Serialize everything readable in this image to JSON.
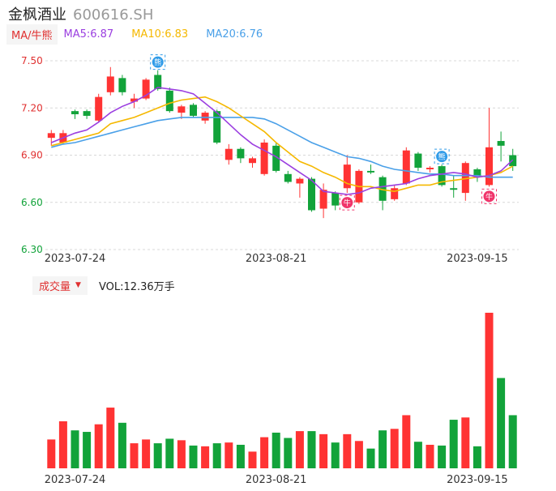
{
  "stock": {
    "name": "金枫酒业",
    "code": "600616.SH"
  },
  "ma_legend": {
    "type_label": "MA/牛熊",
    "items": [
      {
        "label": "MA5:6.87",
        "color": "#9b3fe0"
      },
      {
        "label": "MA10:6.83",
        "color": "#f5b800"
      },
      {
        "label": "MA20:6.76",
        "color": "#4aa0e8"
      }
    ]
  },
  "volume_legend": {
    "type_label": "成交量",
    "vol_label": "VOL:12.36万手"
  },
  "colors": {
    "up": "#ff3333",
    "down": "#12a33a",
    "grid": "#d8d8d8",
    "axis_text": "#333333",
    "price_tick": "#e03030",
    "price_tick_low": "#12a33a"
  },
  "chart_data": {
    "type": "candlestick",
    "price_axis": {
      "ticks": [
        7.5,
        7.2,
        6.9,
        6.6,
        6.3
      ],
      "ylim": [
        6.3,
        7.5
      ],
      "tick_labels": [
        "7.50",
        "7.20",
        "6.90",
        "6.60",
        "6.30"
      ]
    },
    "x_tick_labels": [
      {
        "label": "2023-07-24",
        "index": 2
      },
      {
        "label": "2023-08-21",
        "index": 19
      },
      {
        "label": "2023-09-15",
        "index": 36
      }
    ],
    "candles": [
      {
        "o": 7.01,
        "c": 7.04,
        "h": 7.06,
        "l": 6.96
      },
      {
        "o": 6.98,
        "c": 7.04,
        "h": 7.06,
        "l": 6.97
      },
      {
        "o": 7.18,
        "c": 7.16,
        "h": 7.19,
        "l": 7.13
      },
      {
        "o": 7.18,
        "c": 7.15,
        "h": 7.19,
        "l": 7.13
      },
      {
        "o": 7.12,
        "c": 7.27,
        "h": 7.29,
        "l": 7.11
      },
      {
        "o": 7.3,
        "c": 7.4,
        "h": 7.46,
        "l": 7.28
      },
      {
        "o": 7.39,
        "c": 7.3,
        "h": 7.41,
        "l": 7.28
      },
      {
        "o": 7.24,
        "c": 7.26,
        "h": 7.29,
        "l": 7.2
      },
      {
        "o": 7.26,
        "c": 7.38,
        "h": 7.39,
        "l": 7.25
      },
      {
        "o": 7.41,
        "c": 7.32,
        "h": 7.44,
        "l": 7.31
      },
      {
        "o": 7.31,
        "c": 7.18,
        "h": 7.33,
        "l": 7.17
      },
      {
        "o": 7.17,
        "c": 7.21,
        "h": 7.22,
        "l": 7.13
      },
      {
        "o": 7.22,
        "c": 7.15,
        "h": 7.23,
        "l": 7.14
      },
      {
        "o": 7.12,
        "c": 7.17,
        "h": 7.18,
        "l": 7.1
      },
      {
        "o": 7.18,
        "c": 6.98,
        "h": 7.19,
        "l": 6.97
      },
      {
        "o": 6.87,
        "c": 6.94,
        "h": 6.97,
        "l": 6.84
      },
      {
        "o": 6.94,
        "c": 6.88,
        "h": 6.95,
        "l": 6.85
      },
      {
        "o": 6.85,
        "c": 6.88,
        "h": 6.89,
        "l": 6.82
      },
      {
        "o": 6.78,
        "c": 6.98,
        "h": 7.0,
        "l": 6.77
      },
      {
        "o": 6.96,
        "c": 6.8,
        "h": 6.98,
        "l": 6.79
      },
      {
        "o": 6.78,
        "c": 6.73,
        "h": 6.8,
        "l": 6.72
      },
      {
        "o": 6.72,
        "c": 6.75,
        "h": 6.76,
        "l": 6.63
      },
      {
        "o": 6.75,
        "c": 6.55,
        "h": 6.76,
        "l": 6.54
      },
      {
        "o": 6.56,
        "c": 6.68,
        "h": 6.72,
        "l": 6.5
      },
      {
        "o": 6.66,
        "c": 6.58,
        "h": 6.67,
        "l": 6.55
      },
      {
        "o": 6.69,
        "c": 6.84,
        "h": 6.9,
        "l": 6.66
      },
      {
        "o": 6.6,
        "c": 6.8,
        "h": 6.81,
        "l": 6.59
      },
      {
        "o": 6.8,
        "c": 6.79,
        "h": 6.84,
        "l": 6.78
      },
      {
        "o": 6.76,
        "c": 6.61,
        "h": 6.77,
        "l": 6.55
      },
      {
        "o": 6.62,
        "c": 6.69,
        "h": 6.71,
        "l": 6.61
      },
      {
        "o": 6.72,
        "c": 6.93,
        "h": 6.95,
        "l": 6.71
      },
      {
        "o": 6.91,
        "c": 6.82,
        "h": 6.92,
        "l": 6.8
      },
      {
        "o": 6.81,
        "c": 6.82,
        "h": 6.83,
        "l": 6.79
      },
      {
        "o": 6.83,
        "c": 6.71,
        "h": 6.84,
        "l": 6.7
      },
      {
        "o": 6.69,
        "c": 6.68,
        "h": 6.77,
        "l": 6.63
      },
      {
        "o": 6.66,
        "c": 6.85,
        "h": 6.86,
        "l": 6.61
      },
      {
        "o": 6.81,
        "c": 6.77,
        "h": 6.82,
        "l": 6.73
      },
      {
        "o": 6.71,
        "c": 6.95,
        "h": 7.2,
        "l": 6.7
      },
      {
        "o": 6.99,
        "c": 6.96,
        "h": 7.05,
        "l": 6.86
      },
      {
        "o": 6.9,
        "c": 6.83,
        "h": 6.94,
        "l": 6.8
      }
    ],
    "ma5": [
      6.98,
      7.01,
      7.04,
      7.06,
      7.11,
      7.17,
      7.21,
      7.24,
      7.28,
      7.33,
      7.32,
      7.31,
      7.29,
      7.23,
      7.17,
      7.1,
      7.03,
      6.97,
      6.93,
      6.89,
      6.84,
      6.79,
      6.74,
      6.67,
      6.66,
      6.65,
      6.66,
      6.69,
      6.7,
      6.71,
      6.72,
      6.75,
      6.77,
      6.78,
      6.79,
      6.78,
      6.76,
      6.77,
      6.8,
      6.87
    ],
    "ma10": [
      6.96,
      6.98,
      7.0,
      7.02,
      7.04,
      7.1,
      7.12,
      7.14,
      7.17,
      7.2,
      7.23,
      7.25,
      7.26,
      7.27,
      7.24,
      7.2,
      7.15,
      7.1,
      7.05,
      6.98,
      6.92,
      6.86,
      6.83,
      6.79,
      6.76,
      6.72,
      6.7,
      6.7,
      6.68,
      6.67,
      6.69,
      6.71,
      6.71,
      6.73,
      6.74,
      6.75,
      6.76,
      6.77,
      6.79,
      6.83
    ],
    "ma20": [
      6.95,
      6.97,
      6.98,
      7.0,
      7.02,
      7.04,
      7.06,
      7.08,
      7.1,
      7.12,
      7.13,
      7.14,
      7.14,
      7.14,
      7.14,
      7.14,
      7.14,
      7.14,
      7.13,
      7.1,
      7.06,
      7.02,
      6.98,
      6.95,
      6.92,
      6.89,
      6.88,
      6.86,
      6.83,
      6.81,
      6.8,
      6.79,
      6.78,
      6.78,
      6.77,
      6.77,
      6.77,
      6.76,
      6.76,
      6.76
    ],
    "volume": [
      38,
      62,
      50,
      48,
      58,
      80,
      60,
      33,
      38,
      33,
      39,
      37,
      30,
      29,
      33,
      34,
      31,
      22,
      41,
      47,
      40,
      49,
      49,
      45,
      34,
      45,
      36,
      26,
      50,
      52,
      70,
      35,
      31,
      30,
      64,
      67,
      29,
      205,
      119,
      70
    ],
    "markers": [
      {
        "index": 9,
        "kind": "bear",
        "label": "熊"
      },
      {
        "index": 25,
        "kind": "bull",
        "label": "牛"
      },
      {
        "index": 33,
        "kind": "bear",
        "label": "熊"
      },
      {
        "index": 37,
        "kind": "bull",
        "label": "牛"
      }
    ]
  }
}
